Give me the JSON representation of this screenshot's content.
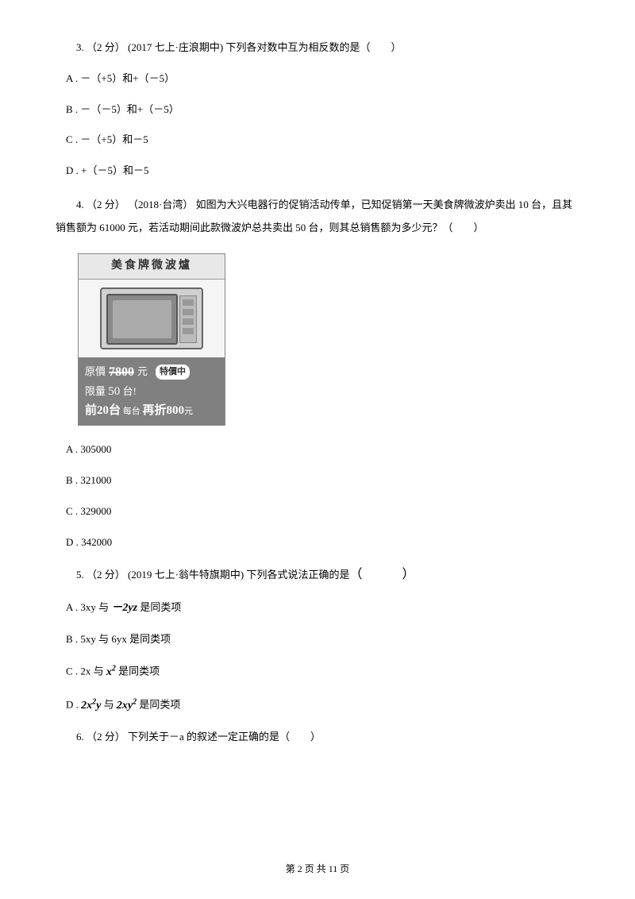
{
  "q3": {
    "stem": "3. （2 分） (2017 七上·庄浪期中) 下列各对数中互为相反数的是（　　）",
    "optA": "A . －（+5）和+（－5）",
    "optB": "B . －（－5）和+（－5）",
    "optC": "C . －（+5）和－5",
    "optD": "D . +（－5）和－5"
  },
  "q4": {
    "stem": "4. （2 分） （2018·台湾） 如图为大兴电器行的促销活动传单，已知促销第一天美食牌微波炉卖出 10 台，且其销售额为 61000 元，若活动期间此款微波炉总共卖出 50 台，则其总销售额为多少元？（　　）",
    "promo": {
      "header": "美食牌微波爐",
      "price_label": "原價",
      "price_strike": "7800",
      "price_unit": "元",
      "badge": "特價中",
      "line2_a": "限量 ",
      "line2_b": "50",
      "line2_c": " 台!",
      "line3_a": "前20台",
      "line3_b": " 每台 ",
      "line3_c": "再折800",
      "line3_d": "元"
    },
    "optA": "A . 305000",
    "optB": "B . 321000",
    "optC": "C . 329000",
    "optD": "D . 342000"
  },
  "q5": {
    "stem_a": "5. （2 分） (2019 七上·翁牛特旗期中) 下列各式说法正确的是",
    "optA_a": "A . 3xy 与 ",
    "optA_term": "－2yz",
    "optA_b": " 是同类项",
    "optB": "B . 5xy 与 6yx 是同类项",
    "optC_a": "C . 2x 与 ",
    "optC_term": "x",
    "optC_sup": "2",
    "optC_b": " 是同类项",
    "optD_a": "D . ",
    "optD_term1": "2x",
    "optD_sup1": "2",
    "optD_term1b": "y",
    "optD_mid": " 与 ",
    "optD_term2": "2xy",
    "optD_sup2": "2",
    "optD_b": " 是同类项"
  },
  "q6": {
    "stem": "6. （2 分） 下列关于－a 的叙述一定正确的是（　　）"
  },
  "footer": "第 2 页 共 11 页"
}
